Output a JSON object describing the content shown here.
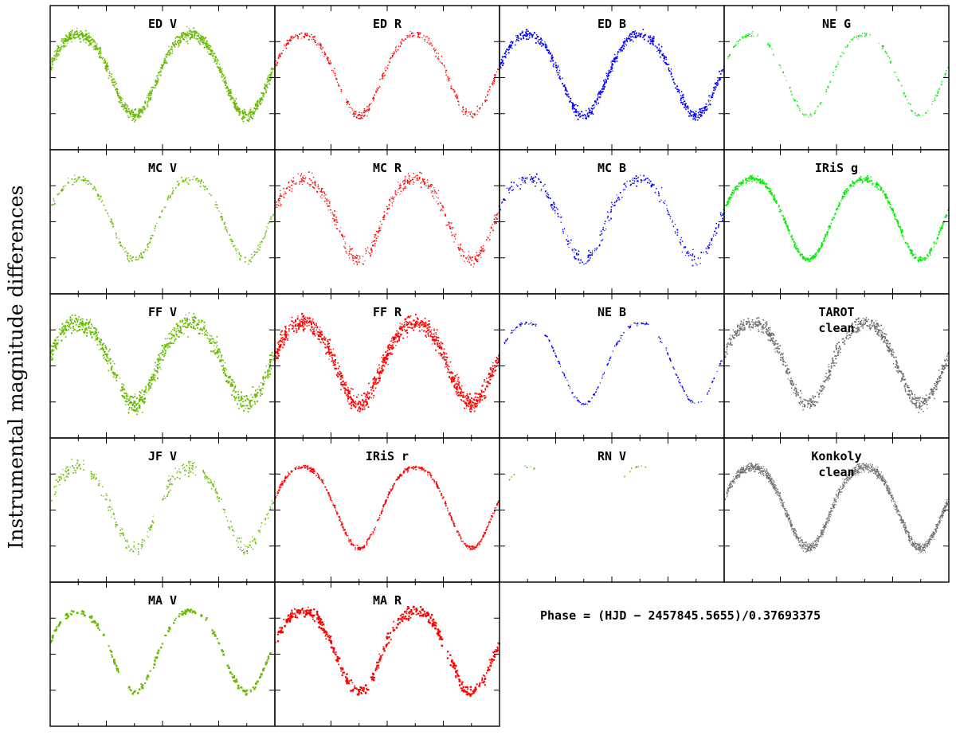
{
  "figure": {
    "ylabel": "Instrumental magnitude differences",
    "phase_formula": "Phase = (HJD − 2457845.5655)/0.37693375"
  },
  "colors": {
    "V": "#66bb00",
    "R": "#ff0000",
    "B": "#0000ff",
    "G": "#00ee00",
    "gray": "#6f6f6f",
    "axes": "#000000"
  },
  "chart_data": {
    "type": "scatter",
    "description_of_data": "Phase-folded light curves, two cycles shown per panel",
    "xlabel": "",
    "ylabel": "Instrumental magnitude differences",
    "phase_formula": "Phase = (HJD − 2457845.5655)/0.37693375",
    "grid": false,
    "layout": [
      [
        {
          "title": [
            "ED  V"
          ],
          "color": "V",
          "density": 1100,
          "scatter": 0.05,
          "size": 1.5,
          "coverage": [
            [
              0,
              2
            ]
          ]
        },
        {
          "title": [
            "ED  R"
          ],
          "color": "R",
          "density": 420,
          "scatter": 0.035,
          "size": 1.3,
          "coverage": [
            [
              0,
              2
            ]
          ]
        },
        {
          "title": [
            "ED  B"
          ],
          "color": "B",
          "density": 700,
          "scatter": 0.045,
          "size": 1.5,
          "coverage": [
            [
              0,
              2
            ]
          ]
        },
        {
          "title": [
            "NE  G"
          ],
          "color": "G",
          "density": 220,
          "scatter": 0.02,
          "size": 1.3,
          "coverage": [
            [
              0,
              0.3
            ],
            [
              0.38,
              1.3
            ],
            [
              1.38,
              2
            ]
          ]
        }
      ],
      [
        {
          "title": [
            "MC  V"
          ],
          "color": "V",
          "density": 320,
          "scatter": 0.035,
          "size": 1.4,
          "coverage": [
            [
              0,
              2
            ]
          ]
        },
        {
          "title": [
            "MC  R"
          ],
          "color": "R",
          "density": 520,
          "scatter": 0.06,
          "size": 1.3,
          "coverage": [
            [
              0,
              2
            ]
          ]
        },
        {
          "title": [
            "MC  B"
          ],
          "color": "B",
          "density": 330,
          "scatter": 0.06,
          "size": 1.4,
          "coverage": [
            [
              0,
              2
            ]
          ]
        },
        {
          "title": [
            "IRiS  g"
          ],
          "color": "G",
          "density": 700,
          "scatter": 0.025,
          "size": 1.5,
          "coverage": [
            [
              0,
              2
            ]
          ]
        }
      ],
      [
        {
          "title": [
            "FF  V"
          ],
          "color": "V",
          "density": 900,
          "scatter": 0.08,
          "size": 1.6,
          "coverage": [
            [
              0,
              2
            ]
          ]
        },
        {
          "title": [
            "FF  R"
          ],
          "color": "R",
          "density": 1100,
          "scatter": 0.08,
          "size": 1.6,
          "coverage": [
            [
              0,
              2
            ]
          ]
        },
        {
          "title": [
            "NE  B"
          ],
          "color": "B",
          "density": 260,
          "scatter": 0.015,
          "size": 1.3,
          "coverage": [
            [
              0,
              0.33
            ],
            [
              0.4,
              1.33
            ],
            [
              1.4,
              2
            ]
          ]
        },
        {
          "title": [
            "TAROT",
            "clean"
          ],
          "color": "gray",
          "density": 900,
          "scatter": 0.06,
          "size": 1.5,
          "coverage": [
            [
              0,
              2
            ]
          ]
        }
      ],
      [
        {
          "title": [
            "JF  V"
          ],
          "color": "V",
          "density": 380,
          "scatter": 0.06,
          "size": 1.4,
          "coverage": [
            [
              0,
              0.3
            ],
            [
              0.36,
              0.92
            ],
            [
              1.0,
              1.3
            ],
            [
              1.36,
              2
            ]
          ]
        },
        {
          "title": [
            "IRiS  r"
          ],
          "color": "R",
          "density": 600,
          "scatter": 0.02,
          "size": 1.4,
          "coverage": [
            [
              0,
              2
            ]
          ]
        },
        {
          "title": [
            "RN  V"
          ],
          "color": "V",
          "density": 70,
          "scatter": 0.012,
          "size": 1.4,
          "coverage": [
            [
              0.07,
              0.33
            ],
            [
              1.07,
              1.33
            ]
          ]
        },
        {
          "title": [
            "Konkoly",
            "clean"
          ],
          "color": "gray",
          "density": 2000,
          "scatter": 0.04,
          "size": 1.1,
          "coverage": [
            [
              0,
              2
            ]
          ]
        }
      ],
      [
        {
          "title": [
            "MA  V"
          ],
          "color": "V",
          "density": 200,
          "scatter": 0.025,
          "size": 2.3,
          "coverage": [
            [
              0,
              0.62
            ],
            [
              0.7,
              2
            ]
          ]
        },
        {
          "title": [
            "MA  R"
          ],
          "color": "R",
          "density": 520,
          "scatter": 0.05,
          "size": 2.0,
          "coverage": [
            [
              0,
              2
            ]
          ]
        },
        null,
        null
      ]
    ],
    "model": {
      "x_range": [
        0,
        2
      ],
      "y_range": [
        0,
        1
      ],
      "shape": "W UMa-type light curve; maxima near phase 0.25 and 1.25, minima near 0.75 and 1.75"
    }
  }
}
